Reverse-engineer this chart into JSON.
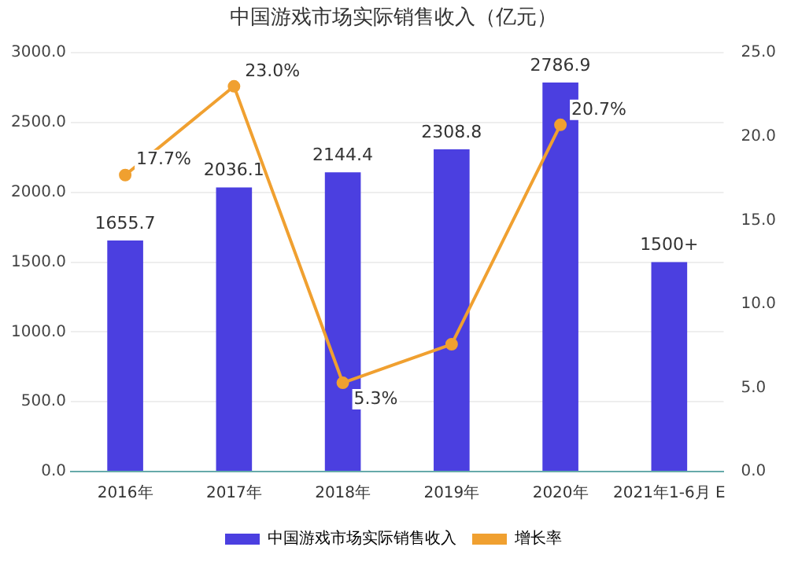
{
  "chart_data": {
    "type": "bar",
    "title": "中国游戏市场实际销售收入（亿元）",
    "categories": [
      "2016年",
      "2017年",
      "2018年",
      "2019年",
      "2020年",
      "2021年1-6月 E"
    ],
    "series": [
      {
        "name": "中国游戏市场实际销售收入",
        "color": "#4b3fe0",
        "values": [
          1655.7,
          2036.1,
          2144.4,
          2308.8,
          2786.9,
          1500
        ],
        "value_labels": [
          "1655.7",
          "2036.1",
          "2144.4",
          "2308.8",
          "2786.9",
          "1500+"
        ]
      },
      {
        "name": "增长率",
        "type": "line",
        "axis": "y2",
        "color": "#f0a030",
        "values": [
          17.7,
          23.0,
          5.3,
          7.6,
          20.7,
          null
        ],
        "value_labels": [
          "17.7%",
          "23.0%",
          "5.3%",
          null,
          "20.7%",
          null
        ]
      }
    ],
    "ylim": [
      0,
      3000
    ],
    "yticks": [
      {
        "value": 0,
        "label": "0.0"
      },
      {
        "value": 500,
        "label": "500.0"
      },
      {
        "value": 1000,
        "label": "1000.0"
      },
      {
        "value": 1500,
        "label": "1500.0"
      },
      {
        "value": 2000,
        "label": "2000.0"
      },
      {
        "value": 2500,
        "label": "2500.0"
      },
      {
        "value": 3000,
        "label": "3000.0"
      }
    ],
    "y2lim": [
      0,
      25
    ],
    "y2ticks": [
      {
        "value": 0,
        "label": "0.0"
      },
      {
        "value": 5,
        "label": "5.0"
      },
      {
        "value": 10,
        "label": "10.0"
      },
      {
        "value": 15,
        "label": "15.0"
      },
      {
        "value": 20,
        "label": "20.0"
      },
      {
        "value": 25,
        "label": "25.0"
      }
    ],
    "grid": "y",
    "legend": "bottom",
    "marker": "circle",
    "line_style": "solid"
  }
}
